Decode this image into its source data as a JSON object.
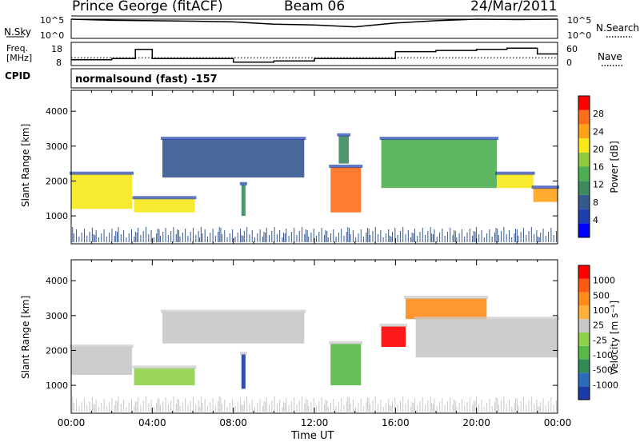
{
  "header": {
    "station": "Prince George (fitACF)",
    "beam": "Beam 06",
    "date": "24/Mar/2011"
  },
  "top_panels": {
    "nsky_label": "N.Sky",
    "nsky_ticks": [
      "10^5",
      "10^0"
    ],
    "nsearch_label": "N.Search",
    "nsearch_ticks": [
      "10^5",
      "10^0"
    ],
    "freq_label_1": "Freq.",
    "freq_label_2": "[MHz]",
    "freq_ticks": [
      "18",
      "8"
    ],
    "nave_label": "Nave",
    "nave_ticks": [
      "60",
      "0"
    ],
    "cpid_label": "CPID",
    "cpid_text": "normalsound (fast) -157"
  },
  "panels": {
    "ylabel": "Slant Range [km]",
    "yticks": [
      "4000",
      "3000",
      "2000",
      "1000"
    ],
    "xticks": [
      "00:00",
      "04:00",
      "08:00",
      "12:00",
      "16:00",
      "20:00",
      "00:00"
    ],
    "xlabel": "Time UT"
  },
  "power_scale": {
    "label": "Power [dB]",
    "ticks": [
      "28",
      "24",
      "20",
      "16",
      "12",
      "8",
      "4"
    ],
    "colors": [
      "#0000ff",
      "#1f3fae",
      "#35588f",
      "#3e8a5f",
      "#4caf50",
      "#8fcb3c",
      "#f7e81a",
      "#ffa21a",
      "#ff6d1a",
      "#ff0000"
    ]
  },
  "velocity_scale": {
    "label": "Velocity [m s⁻¹]",
    "ticks": [
      "1000",
      "500",
      "100",
      "25",
      "-25",
      "-100",
      "-500",
      "-1000"
    ],
    "colors": [
      "#1a3aa6",
      "#2a6cb8",
      "#2f8a54",
      "#58b848",
      "#8fd14a",
      "#c8c8c8",
      "#ffb03b",
      "#ff8c1a",
      "#ff5a14",
      "#ff0000"
    ]
  },
  "chart_data": [
    {
      "type": "line",
      "title": "N.Sky / N.Search",
      "x": [
        "00:00",
        "02:00",
        "04:00",
        "06:00",
        "08:00",
        "10:00",
        "12:00",
        "14:00",
        "16:00",
        "18:00",
        "20:00",
        "22:00",
        "24:00"
      ],
      "series": [
        {
          "name": "N.Sky",
          "values": [
            100000,
            50000,
            40000,
            30000,
            20000,
            5000,
            3000,
            1000,
            10000,
            40000,
            100000,
            80000,
            100000
          ]
        }
      ],
      "ylim": [
        1,
        100000
      ],
      "yscale": "log"
    },
    {
      "type": "line",
      "title": "Freq. [MHz] / Nave",
      "x": [
        "00:00",
        "02:00",
        "03:10",
        "04:00",
        "06:00",
        "08:00",
        "10:00",
        "12:00",
        "14:00",
        "16:00",
        "18:00",
        "20:00",
        "21:30",
        "23:00",
        "24:00"
      ],
      "series": [
        {
          "name": "Freq.",
          "values": [
            10.5,
            11,
            15,
            11,
            11,
            9.5,
            10,
            11,
            11,
            14,
            14.5,
            15,
            15.5,
            13,
            13
          ]
        },
        {
          "name": "Nave",
          "values": [
            20,
            20,
            20,
            20,
            20,
            20,
            20,
            20,
            20,
            20,
            20,
            20,
            20,
            20,
            20
          ]
        }
      ],
      "ylim": [
        8,
        18
      ]
    },
    {
      "type": "heatmap",
      "title": "Power [dB]",
      "xlabel": "Time UT",
      "ylabel": "Slant Range [km]",
      "xlim": [
        0,
        24
      ],
      "ylim": [
        200,
        4600
      ],
      "regions": [
        {
          "t0": 0.0,
          "t1": 3.0,
          "r0": 1200,
          "r1": 2200,
          "power": 20
        },
        {
          "t0": 3.1,
          "t1": 6.1,
          "r0": 1100,
          "r1": 1500,
          "power": 20
        },
        {
          "t0": 4.5,
          "t1": 11.5,
          "r0": 2100,
          "r1": 3200,
          "power": 10
        },
        {
          "t0": 8.4,
          "t1": 8.6,
          "r0": 1000,
          "r1": 1900,
          "power": 12
        },
        {
          "t0": 12.8,
          "t1": 14.3,
          "r0": 1100,
          "r1": 2400,
          "power": 26
        },
        {
          "t0": 13.2,
          "t1": 13.7,
          "r0": 2500,
          "r1": 3300,
          "power": 12
        },
        {
          "t0": 15.3,
          "t1": 21.0,
          "r0": 1800,
          "r1": 3200,
          "power": 14
        },
        {
          "t0": 21.0,
          "t1": 22.8,
          "r0": 1800,
          "r1": 2200,
          "power": 22
        },
        {
          "t0": 22.8,
          "t1": 24.0,
          "r0": 1400,
          "r1": 1800,
          "power": 24
        }
      ]
    },
    {
      "type": "heatmap",
      "title": "Velocity [m s⁻¹]",
      "xlabel": "Time UT",
      "ylabel": "Slant Range [km]",
      "xlim": [
        0,
        24
      ],
      "ylim": [
        200,
        4600
      ],
      "regions": [
        {
          "t0": 0.0,
          "t1": 3.0,
          "r0": 1300,
          "r1": 2100,
          "velocity": 0
        },
        {
          "t0": 3.1,
          "t1": 6.1,
          "r0": 1000,
          "r1": 1500,
          "velocity": 60
        },
        {
          "t0": 4.5,
          "t1": 11.5,
          "r0": 2200,
          "r1": 3100,
          "velocity": 0
        },
        {
          "t0": 8.4,
          "t1": 8.6,
          "r0": 900,
          "r1": 1900,
          "velocity": 800
        },
        {
          "t0": 12.8,
          "t1": 14.3,
          "r0": 1000,
          "r1": 2200,
          "velocity": 150
        },
        {
          "t0": 15.3,
          "t1": 16.5,
          "r0": 2100,
          "r1": 2700,
          "velocity": -600
        },
        {
          "t0": 16.5,
          "t1": 20.5,
          "r0": 2900,
          "r1": 3500,
          "velocity": -300
        },
        {
          "t0": 17.0,
          "t1": 24.0,
          "r0": 1800,
          "r1": 2900,
          "velocity": 0
        }
      ]
    }
  ]
}
